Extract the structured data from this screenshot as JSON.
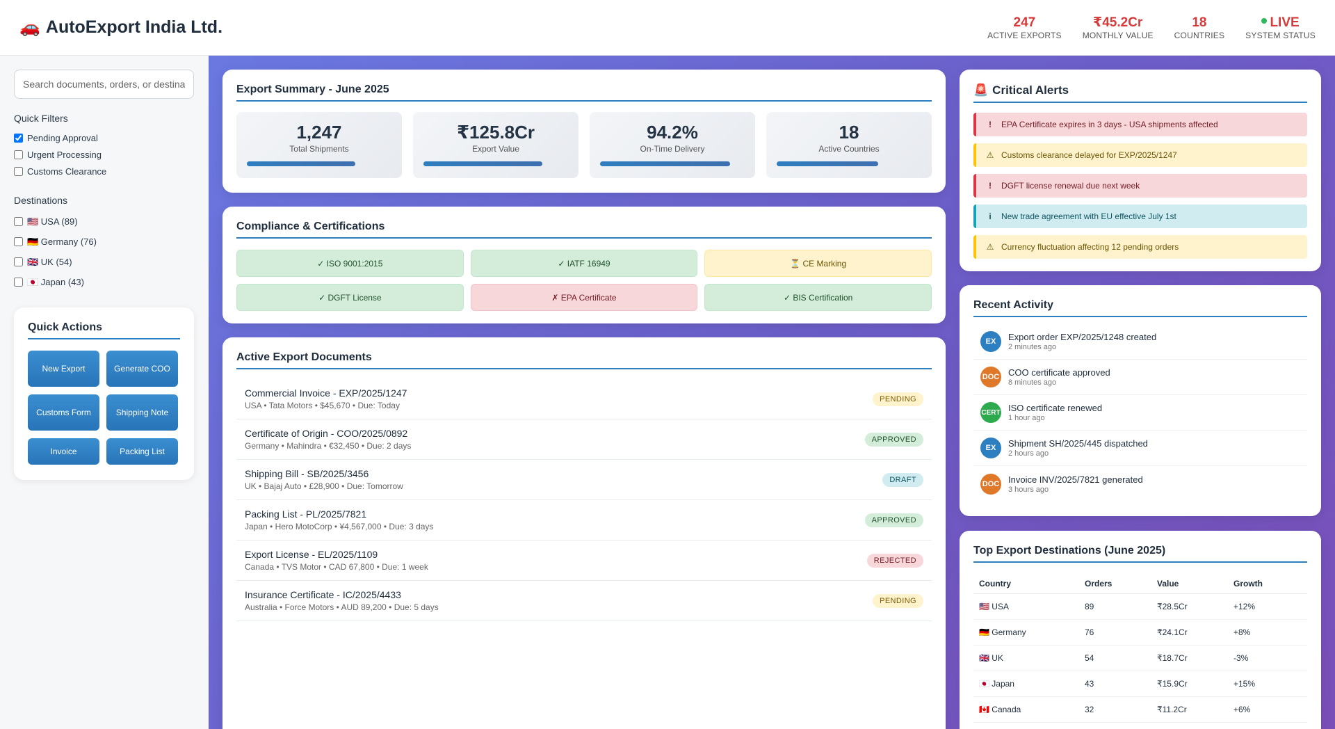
{
  "header": {
    "brand_icon": "🚗",
    "brand": "AutoExport India Ltd.",
    "stats": [
      {
        "value": "247",
        "label": "ACTIVE EXPORTS"
      },
      {
        "value": "₹45.2Cr",
        "label": "MONTHLY VALUE"
      },
      {
        "value": "18",
        "label": "COUNTRIES"
      },
      {
        "value": "LIVE",
        "label": "SYSTEM STATUS"
      }
    ]
  },
  "sidebar": {
    "search_placeholder": "Search documents, orders, or destinations...",
    "quick_filters_title": "Quick Filters",
    "filters": [
      {
        "label": "Pending Approval",
        "checked": true
      },
      {
        "label": "Urgent Processing",
        "checked": false
      },
      {
        "label": "Customs Clearance",
        "checked": false
      }
    ],
    "destinations_title": "Destinations",
    "destinations": [
      {
        "label": "🇺🇸 USA (89)"
      },
      {
        "label": "🇩🇪 Germany (76)"
      },
      {
        "label": "🇬🇧 UK (54)"
      },
      {
        "label": "🇯🇵 Japan (43)"
      }
    ],
    "quick_actions_title": "Quick Actions",
    "actions": [
      "New Export",
      "Generate COO",
      "Customs Form",
      "Shipping Note",
      "Invoice",
      "Packing List"
    ]
  },
  "summary": {
    "title": "Export Summary - June 2025",
    "items": [
      {
        "value": "1,247",
        "label": "Total Shipments",
        "progress": 0.75
      },
      {
        "value": "₹125.8Cr",
        "label": "Export Value",
        "progress": 0.82
      },
      {
        "value": "94.2%",
        "label": "On-Time Delivery",
        "progress": 0.9
      },
      {
        "value": "18",
        "label": "Active Countries",
        "progress": 0.7
      }
    ]
  },
  "compliance": {
    "title": "Compliance & Certifications",
    "items": [
      {
        "label": "✓ ISO 9001:2015",
        "status": "ok"
      },
      {
        "label": "✓ IATF 16949",
        "status": "ok"
      },
      {
        "label": "⏳ CE Marking",
        "status": "warn"
      },
      {
        "label": "✓ DGFT License",
        "status": "ok"
      },
      {
        "label": "✗ EPA Certificate",
        "status": "bad"
      },
      {
        "label": "✓ BIS Certification",
        "status": "ok"
      }
    ]
  },
  "documents": {
    "title": "Active Export Documents",
    "items": [
      {
        "title": "Commercial Invoice - EXP/2025/1247",
        "meta": "USA • Tata Motors • $45,670 • Due: Today",
        "status": "PENDING",
        "kind": "pending"
      },
      {
        "title": "Certificate of Origin - COO/2025/0892",
        "meta": "Germany • Mahindra • €32,450 • Due: 2 days",
        "status": "APPROVED",
        "kind": "approved"
      },
      {
        "title": "Shipping Bill - SB/2025/3456",
        "meta": "UK • Bajaj Auto • £28,900 • Due: Tomorrow",
        "status": "DRAFT",
        "kind": "draft"
      },
      {
        "title": "Packing List - PL/2025/7821",
        "meta": "Japan • Hero MotoCorp • ¥4,567,000 • Due: 3 days",
        "status": "APPROVED",
        "kind": "approved"
      },
      {
        "title": "Export License - EL/2025/1109",
        "meta": "Canada • TVS Motor • CAD 67,800 • Due: 1 week",
        "status": "REJECTED",
        "kind": "rejected"
      },
      {
        "title": "Insurance Certificate - IC/2025/4433",
        "meta": "Australia • Force Motors • AUD 89,200 • Due: 5 days",
        "status": "PENDING",
        "kind": "pending"
      }
    ]
  },
  "alerts": {
    "title_icon": "🚨",
    "title": "Critical Alerts",
    "items": [
      {
        "icon": "!",
        "text": "EPA Certificate expires in 3 days - USA shipments affected",
        "kind": "danger"
      },
      {
        "icon": "⚠",
        "text": "Customs clearance delayed for EXP/2025/1247",
        "kind": "warning"
      },
      {
        "icon": "!",
        "text": "DGFT license renewal due next week",
        "kind": "danger"
      },
      {
        "icon": "i",
        "text": "New trade agreement with EU effective July 1st",
        "kind": "info"
      },
      {
        "icon": "⚠",
        "text": "Currency fluctuation affecting 12 pending orders",
        "kind": "warning"
      }
    ]
  },
  "activity": {
    "title": "Recent Activity",
    "items": [
      {
        "avatar": "EX",
        "kind": "ex",
        "text": "Export order EXP/2025/1248 created",
        "time": "2 minutes ago"
      },
      {
        "avatar": "DOC",
        "kind": "doc",
        "text": "COO certificate approved",
        "time": "8 minutes ago"
      },
      {
        "avatar": "CERT",
        "kind": "cert",
        "text": "ISO certificate renewed",
        "time": "1 hour ago"
      },
      {
        "avatar": "EX",
        "kind": "ex",
        "text": "Shipment SH/2025/445 dispatched",
        "time": "2 hours ago"
      },
      {
        "avatar": "DOC",
        "kind": "doc",
        "text": "Invoice INV/2025/7821 generated",
        "time": "3 hours ago"
      }
    ]
  },
  "destinations_table": {
    "title": "Top Export Destinations (June 2025)",
    "headers": [
      "Country",
      "Orders",
      "Value",
      "Growth"
    ],
    "rows": [
      {
        "country": "🇺🇸 USA",
        "orders": "89",
        "value": "₹28.5Cr",
        "growth": "+12%",
        "trend": "pos"
      },
      {
        "country": "🇩🇪 Germany",
        "orders": "76",
        "value": "₹24.1Cr",
        "growth": "+8%",
        "trend": "pos"
      },
      {
        "country": "🇬🇧 UK",
        "orders": "54",
        "value": "₹18.7Cr",
        "growth": "-3%",
        "trend": "neg"
      },
      {
        "country": "🇯🇵 Japan",
        "orders": "43",
        "value": "₹15.9Cr",
        "growth": "+15%",
        "trend": "pos"
      },
      {
        "country": "🇨🇦 Canada",
        "orders": "32",
        "value": "₹11.2Cr",
        "growth": "+6%",
        "trend": "pos"
      }
    ]
  },
  "colors": {
    "accent": "#2c7fc1",
    "stat_red": "#d63a3a",
    "live_green": "#2eb85c",
    "bg_gradient_start": "#6a78e0",
    "bg_gradient_end": "#7a4fb8"
  }
}
